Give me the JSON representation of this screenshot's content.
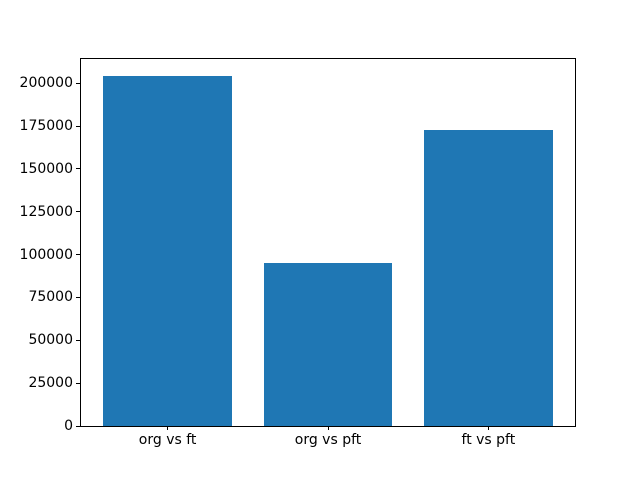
{
  "figure": {
    "background": "#ffffff"
  },
  "chart_data": {
    "type": "bar",
    "title": "",
    "xlabel": "",
    "ylabel": "",
    "categories": [
      "org vs ft",
      "org vs pft",
      "ft vs pft"
    ],
    "values": [
      204000,
      95000,
      173000
    ],
    "yticks": [
      0,
      25000,
      50000,
      75000,
      100000,
      125000,
      150000,
      175000,
      200000
    ],
    "ylim": [
      0,
      214200
    ],
    "bar_color": "#1f77b4",
    "spine_color": "#000000",
    "text_color": "#000000",
    "grid": false,
    "legend": false,
    "bar_width_fraction": 0.8,
    "x_units_span": 3.08,
    "x_left_pad_units": 0.54
  }
}
